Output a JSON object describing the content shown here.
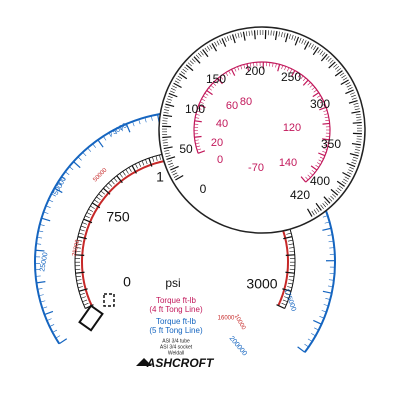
{
  "large_gauge": {
    "unit": "psi",
    "psi_labels": [
      "0",
      "750",
      "1",
      "3000"
    ],
    "blue_labels": [
      "25000",
      "50000",
      "75000",
      "175000",
      "200000"
    ],
    "red_labels": [
      "25000",
      "50000",
      "10000",
      "16000"
    ]
  },
  "small_gauge": {
    "outer_labels": [
      "0",
      "50",
      "100",
      "150",
      "200",
      "250",
      "300",
      "350",
      "400",
      "420"
    ],
    "inner_labels": [
      "-70",
      "0",
      "20",
      "40",
      "60",
      "80",
      "120",
      "140"
    ]
  },
  "legend": {
    "red_title": "Torque ft-lb",
    "red_sub": "(4 ft Tong Line)",
    "blue_title": "Torque ft-lb",
    "blue_sub": "(5 ft Tong Line)"
  },
  "notes": [
    "ASI 3/4 tube",
    "ASI 3/4 socket",
    "Weldall"
  ],
  "brand": "ASHCROFT"
}
